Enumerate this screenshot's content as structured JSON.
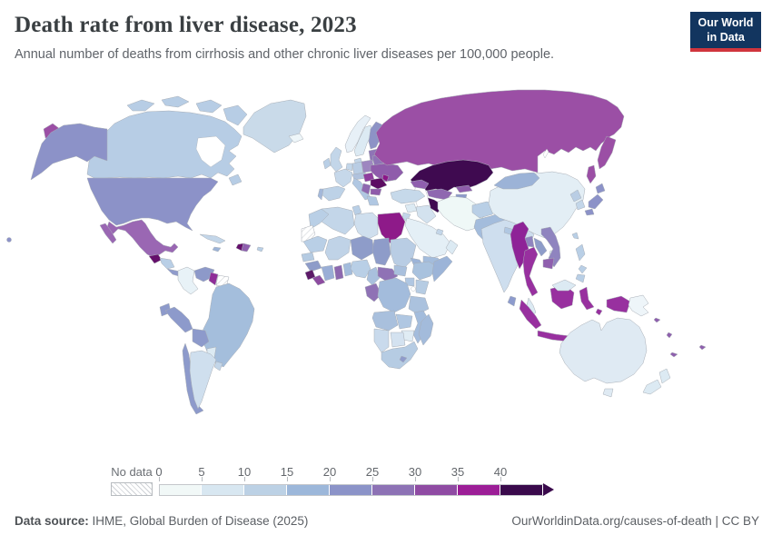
{
  "header": {
    "title": "Death rate from liver disease, 2023",
    "subtitle": "Annual number of deaths from cirrhosis and other chronic liver diseases per 100,000 people.",
    "logo_line1": "Our World",
    "logo_line2": "in Data",
    "logo_bg": "#12355f",
    "logo_stripe": "#d0353d"
  },
  "footer": {
    "source_label": "Data source:",
    "source_text": " IHME, Global Burden of Disease (2025)",
    "link_text": "OurWorldinData.org/causes-of-death",
    "license_sep": " | ",
    "license_text": "CC BY"
  },
  "chart_data": {
    "type": "choropleth-map",
    "title": "Death rate from liver disease, 2023",
    "unit": "deaths per 100,000 people",
    "legend_ticks": [
      "0",
      "5",
      "10",
      "15",
      "20",
      "25",
      "30",
      "35",
      "40"
    ],
    "bin_size": 5,
    "no_data_label": "No data",
    "bin_colors": [
      "#f1f8f7",
      "#d8e7f1",
      "#bcd1e5",
      "#9cb7da",
      "#8b93c8",
      "#8d72b5",
      "#8f4ba3",
      "#9c1e97",
      "#3a0a4c"
    ],
    "notable_values": {
      "very_high_40plus": [
        "Kazakhstan",
        "Turkmenistan"
      ],
      "high_35_40": [
        "Egypt",
        "Moldova"
      ],
      "high_30_35": [
        "Guyana",
        "Romania",
        "Guatemala",
        "Haiti",
        "Myanmar",
        "Thailand",
        "Indonesia",
        "Mongolia_note_no"
      ],
      "mid_25_30": [
        "Russia",
        "Mexico",
        "Ukraine",
        "Uzbekistan",
        "Liberia",
        "Ghana"
      ],
      "low_0_5": [
        "Iran",
        "Colombia",
        "Iceland",
        "Papua New Guinea"
      ]
    }
  },
  "legend": {
    "ticks": [
      "0",
      "5",
      "10",
      "15",
      "20",
      "25",
      "30",
      "35",
      "40"
    ],
    "segments": [
      "#f1f8f7",
      "#d8e7f1",
      "#bcd1e5",
      "#9cb7da",
      "#8b93c8",
      "#8d72b5",
      "#8f4ba3",
      "#9c1e97",
      "#3a0a4c"
    ],
    "segment_width": 47,
    "no_data_label": "No data"
  },
  "map": {
    "ocean": "#ffffff",
    "border": "#a8aeb6",
    "regions": [
      {
        "id": "greenland",
        "color": "#c9dae9"
      },
      {
        "id": "canada",
        "color": "#b7cde5"
      },
      {
        "id": "canada-arctic-1",
        "color": "#b7cde5"
      },
      {
        "id": "canada-arctic-2",
        "color": "#b7cde5"
      },
      {
        "id": "canada-arctic-3",
        "color": "#b7cde5"
      },
      {
        "id": "baffin",
        "color": "#b7cde5"
      },
      {
        "id": "newfoundland",
        "color": "#b7cde5"
      },
      {
        "id": "alaska",
        "color": "#8c92c8"
      },
      {
        "id": "usa",
        "color": "#8c92c8"
      },
      {
        "id": "hawaii",
        "color": "#8c92c8"
      },
      {
        "id": "chukotka-wrap",
        "color": "#9b4fa5"
      },
      {
        "id": "mexico",
        "color": "#9a67b3"
      },
      {
        "id": "baja",
        "color": "#9a67b3"
      },
      {
        "id": "guatemala",
        "color": "#650f6b"
      },
      {
        "id": "honduras-nicaragua",
        "color": "#b9cfe6"
      },
      {
        "id": "costarica-panama",
        "color": "#8f9bcb"
      },
      {
        "id": "cuba",
        "color": "#c3d6e9"
      },
      {
        "id": "haiti",
        "color": "#650f6b"
      },
      {
        "id": "dominican-republic",
        "color": "#8f5fae"
      },
      {
        "id": "jamaica",
        "color": "#9cb3d7"
      },
      {
        "id": "puerto-rico",
        "color": "#b9cfe6"
      },
      {
        "id": "colombia",
        "color": "#e8f2f7"
      },
      {
        "id": "venezuela",
        "color": "#8d99c9"
      },
      {
        "id": "guyana",
        "color": "#8f2d98"
      },
      {
        "id": "suriname",
        "color": "hatch"
      },
      {
        "id": "brazil",
        "color": "#a4bedc"
      },
      {
        "id": "ecuador",
        "color": "#8d9acb"
      },
      {
        "id": "peru",
        "color": "#8d9acb"
      },
      {
        "id": "bolivia",
        "color": "#8d9acb"
      },
      {
        "id": "paraguay",
        "color": "#dceaf3"
      },
      {
        "id": "chile",
        "color": "#8d9acb"
      },
      {
        "id": "argentina",
        "color": "#cfdfee"
      },
      {
        "id": "uruguay",
        "color": "#c3d6e9"
      },
      {
        "id": "iceland",
        "color": "#eef6f9"
      },
      {
        "id": "norway",
        "color": "#e7f0f7"
      },
      {
        "id": "sweden",
        "color": "#dceaf3"
      },
      {
        "id": "finland",
        "color": "#8d93c6"
      },
      {
        "id": "baltics",
        "color": "#8f74b6"
      },
      {
        "id": "denmark",
        "color": "#c3d6e9"
      },
      {
        "id": "uk",
        "color": "#c3d6e9"
      },
      {
        "id": "ireland",
        "color": "#b9cfe6"
      },
      {
        "id": "germany",
        "color": "#b9cde4"
      },
      {
        "id": "benelux",
        "color": "#c3d6e9"
      },
      {
        "id": "france",
        "color": "#c6d8ea"
      },
      {
        "id": "spain",
        "color": "#bdd2e7"
      },
      {
        "id": "portugal",
        "color": "#a3b8da"
      },
      {
        "id": "italy",
        "color": "#b0c7e2"
      },
      {
        "id": "alpine",
        "color": "#b0c2dd"
      },
      {
        "id": "poland",
        "color": "#9d86c0"
      },
      {
        "id": "belarus",
        "color": "#8f74b6"
      },
      {
        "id": "ukraine",
        "color": "#8f5cab"
      },
      {
        "id": "hungary-slovakia",
        "color": "#8f3d9e"
      },
      {
        "id": "romania",
        "color": "#5c0c62"
      },
      {
        "id": "moldova",
        "color": "#8c1588"
      },
      {
        "id": "balkans",
        "color": "#8f68b0"
      },
      {
        "id": "bulgaria",
        "color": "#8f5aaa"
      },
      {
        "id": "greece",
        "color": "#b0c7e2"
      },
      {
        "id": "russia",
        "color": "#9b4fa5"
      },
      {
        "id": "kamchatka",
        "color": "#9b4fa5"
      },
      {
        "id": "sakhalin",
        "color": "#9b4fa5"
      },
      {
        "id": "turkey",
        "color": "#c6d9ea"
      },
      {
        "id": "caucasus",
        "color": "#8f5fae"
      },
      {
        "id": "syria",
        "color": "#dceaf3"
      },
      {
        "id": "jordan-israel",
        "color": "#c3d6e9"
      },
      {
        "id": "iraq",
        "color": "#d3e2ef"
      },
      {
        "id": "iran",
        "color": "#eff8f7"
      },
      {
        "id": "saudi-arabia",
        "color": "#e4eff6"
      },
      {
        "id": "yemen",
        "color": "#a3bcdc"
      },
      {
        "id": "oman",
        "color": "#dceaf3"
      },
      {
        "id": "gulf-states",
        "color": "#c3d6e9"
      },
      {
        "id": "kazakhstan",
        "color": "#3f0a50"
      },
      {
        "id": "uzbekistan",
        "color": "#8f68b0"
      },
      {
        "id": "turkmenistan",
        "color": "#3f0a50"
      },
      {
        "id": "kyrgyzstan",
        "color": "#8f5cab"
      },
      {
        "id": "tajikistan",
        "color": "#8d9aca"
      },
      {
        "id": "afghanistan",
        "color": "#b9cfe6"
      },
      {
        "id": "pakistan",
        "color": "#a3bcdc"
      },
      {
        "id": "india",
        "color": "#cedeee"
      },
      {
        "id": "sri-lanka",
        "color": "#8d9bcd"
      },
      {
        "id": "nepal",
        "color": "#b0c7e2"
      },
      {
        "id": "bangladesh",
        "color": "#8f84bf"
      },
      {
        "id": "china",
        "color": "#e3eef5"
      },
      {
        "id": "mongolia",
        "color": "#9cb3d7"
      },
      {
        "id": "north-korea",
        "color": "#b9cde4"
      },
      {
        "id": "south-korea",
        "color": "#c3d6e9"
      },
      {
        "id": "japan-hokkaido",
        "color": "#8c92c8"
      },
      {
        "id": "japan-honshu",
        "color": "#8c92c8"
      },
      {
        "id": "japan-kyushu",
        "color": "#8c92c8"
      },
      {
        "id": "taiwan",
        "color": "#b9cfe6"
      },
      {
        "id": "hainan",
        "color": "#dceaf3"
      },
      {
        "id": "myanmar",
        "color": "#8e2397"
      },
      {
        "id": "thailand",
        "color": "#98309f"
      },
      {
        "id": "laos",
        "color": "#8e9cc9"
      },
      {
        "id": "vietnam",
        "color": "#8f84bf"
      },
      {
        "id": "cambodia",
        "color": "#8f5fae"
      },
      {
        "id": "malaysia",
        "color": "#dceaf3"
      },
      {
        "id": "sumatra",
        "color": "#98309f"
      },
      {
        "id": "java",
        "color": "#98309f"
      },
      {
        "id": "kalimantan",
        "color": "#98309f"
      },
      {
        "id": "malaysia-borneo",
        "color": "#dceaf3"
      },
      {
        "id": "sulawesi",
        "color": "#98309f"
      },
      {
        "id": "lesser-sunda-1",
        "color": "#98309f"
      },
      {
        "id": "lesser-sunda-2",
        "color": "#98309f"
      },
      {
        "id": "moluccas",
        "color": "#98309f"
      },
      {
        "id": "west-papua",
        "color": "#98309f"
      },
      {
        "id": "papua-new-guinea",
        "color": "#eef5f9"
      },
      {
        "id": "philippines-luzon",
        "color": "#b9cfe6"
      },
      {
        "id": "philippines-visayas",
        "color": "#b9cfe6"
      },
      {
        "id": "philippines-mindanao",
        "color": "#b9cfe6"
      },
      {
        "id": "australia",
        "color": "#dfeaf3"
      },
      {
        "id": "tasmania",
        "color": "#dfeaf3"
      },
      {
        "id": "nz-north",
        "color": "#dceaf3"
      },
      {
        "id": "nz-south",
        "color": "#dceaf3"
      },
      {
        "id": "solomons",
        "color": "#8f5fae"
      },
      {
        "id": "vanuatu",
        "color": "#8f5fae"
      },
      {
        "id": "new-caledonia",
        "color": "#8f5fae"
      },
      {
        "id": "fiji",
        "color": "#8f5fae"
      },
      {
        "id": "morocco",
        "color": "#b9cfe6"
      },
      {
        "id": "western-sahara",
        "color": "hatch"
      },
      {
        "id": "algeria",
        "color": "#c3d6e9"
      },
      {
        "id": "tunisia",
        "color": "#b9cfe6"
      },
      {
        "id": "libya",
        "color": "#cfdfee"
      },
      {
        "id": "egypt",
        "color": "#8e1a89"
      },
      {
        "id": "mauritania",
        "color": "#b9cfe6"
      },
      {
        "id": "mali",
        "color": "#c0d3e7"
      },
      {
        "id": "niger",
        "color": "#8e9cc9"
      },
      {
        "id": "chad",
        "color": "#8e9cc9"
      },
      {
        "id": "sudan",
        "color": "#b9cde4"
      },
      {
        "id": "eritrea",
        "color": "#9cb4d8"
      },
      {
        "id": "senegal",
        "color": "#b5cbe2"
      },
      {
        "id": "guinea",
        "color": "#8e9cc9"
      },
      {
        "id": "sierra-leone",
        "color": "#5d1a68"
      },
      {
        "id": "liberia",
        "color": "#8d4ba0"
      },
      {
        "id": "ivory-coast",
        "color": "#9aaed6"
      },
      {
        "id": "ghana",
        "color": "#8d68af"
      },
      {
        "id": "togo-benin",
        "color": "#a3bcdc"
      },
      {
        "id": "nigeria",
        "color": "#b9cfe6"
      },
      {
        "id": "cameroon",
        "color": "#a9c0dd"
      },
      {
        "id": "central-african-republic",
        "color": "#8f72b5"
      },
      {
        "id": "south-sudan",
        "color": "#a9c0dd"
      },
      {
        "id": "ethiopia",
        "color": "#a9c2de"
      },
      {
        "id": "somalia",
        "color": "#9cb4d8"
      },
      {
        "id": "uganda",
        "color": "#b0c7e2"
      },
      {
        "id": "kenya",
        "color": "#b6cce3"
      },
      {
        "id": "gabon-congo",
        "color": "#8f72b5"
      },
      {
        "id": "drc",
        "color": "#a3bcdc"
      },
      {
        "id": "tanzania",
        "color": "#abc2de"
      },
      {
        "id": "angola",
        "color": "#a9c0dd"
      },
      {
        "id": "zambia",
        "color": "#b0c7e2"
      },
      {
        "id": "mozambique",
        "color": "#a3bcdc"
      },
      {
        "id": "zimbabwe",
        "color": "#e0ecf4"
      },
      {
        "id": "botswana",
        "color": "#d4e2f0"
      },
      {
        "id": "namibia",
        "color": "#c9daec"
      },
      {
        "id": "south-africa",
        "color": "#b6cce3"
      },
      {
        "id": "lesotho",
        "color": "#8f9bcb"
      },
      {
        "id": "madagascar",
        "color": "#a3bbdb"
      }
    ]
  }
}
